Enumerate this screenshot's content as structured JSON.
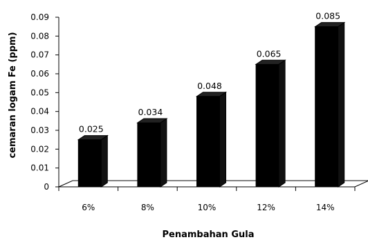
{
  "chart_data": {
    "type": "bar",
    "style": "3d",
    "categories": [
      "6%",
      "8%",
      "10%",
      "12%",
      "14%"
    ],
    "values": [
      0.025,
      0.034,
      0.048,
      0.065,
      0.085
    ],
    "data_labels": [
      "0.025",
      "0.034",
      "0.048",
      "0.065",
      "0.085"
    ],
    "xlabel": "Penambahan Gula",
    "ylabel": "cemaran logam Fe (ppm)",
    "ylim": [
      0,
      0.09
    ],
    "yticks": [
      0,
      0.01,
      0.02,
      0.03,
      0.04,
      0.05,
      0.06,
      0.07,
      0.08,
      0.09
    ],
    "ytick_labels": [
      "0",
      "0.01",
      "0.02",
      "0.03",
      "0.04",
      "0.05",
      "0.06",
      "0.07",
      "0.08",
      "0.09"
    ],
    "grid": false,
    "legend": "none",
    "bar_color": "#000000",
    "axis_color": "#000000"
  }
}
